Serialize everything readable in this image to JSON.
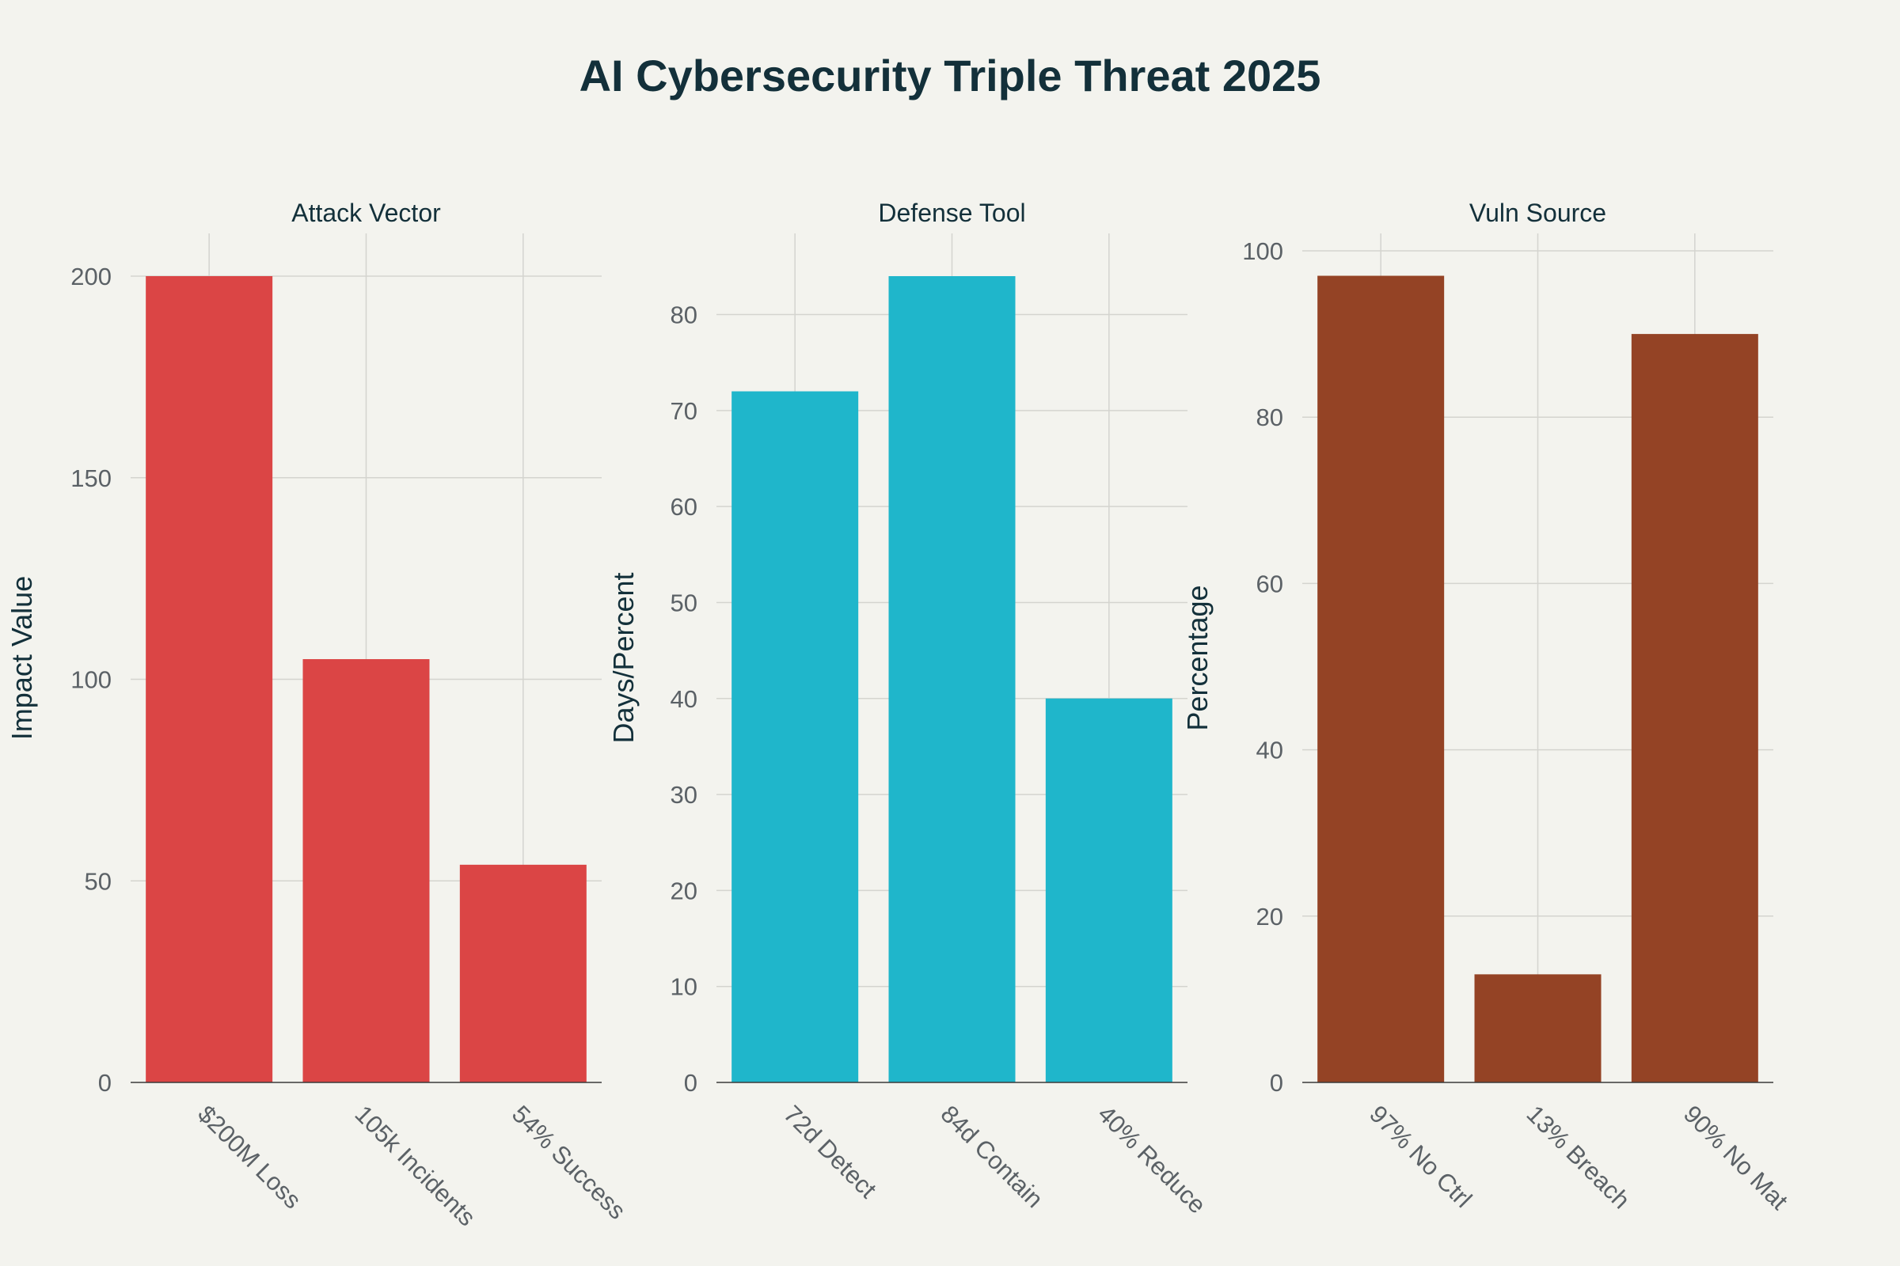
{
  "title": "AI Cybersecurity Triple Threat 2025",
  "colors": {
    "background": "#f3f3ee",
    "title": "#13303a",
    "grid": "#d4d4cf",
    "tick": "#5b6166"
  },
  "chart_data": [
    {
      "type": "bar",
      "title": "Attack Vector",
      "ylabel": "Impact Value",
      "xlabel": "",
      "categories": [
        "$200M Loss",
        "105k Incidents",
        "54% Success"
      ],
      "values": [
        200,
        105,
        54
      ],
      "ylim": [
        0,
        200
      ],
      "yticks": [
        0,
        50,
        100,
        150,
        200
      ],
      "color": "#db4545"
    },
    {
      "type": "bar",
      "title": "Defense Tool",
      "ylabel": "Days/Percent",
      "xlabel": "",
      "categories": [
        "72d Detect",
        "84d Contain",
        "40% Reduce"
      ],
      "values": [
        72,
        84,
        40
      ],
      "ylim": [
        0,
        84
      ],
      "yticks": [
        0,
        10,
        20,
        30,
        40,
        50,
        60,
        70,
        80
      ],
      "color": "#1fb6cb"
    },
    {
      "type": "bar",
      "title": "Vuln Source",
      "ylabel": "Percentage",
      "xlabel": "",
      "categories": [
        "97% No Ctrl",
        "13% Breach",
        "90% No Mat"
      ],
      "values": [
        97,
        13,
        90
      ],
      "ylim": [
        0,
        100
      ],
      "yticks": [
        0,
        20,
        40,
        60,
        80,
        100
      ],
      "color": "#944325"
    }
  ]
}
